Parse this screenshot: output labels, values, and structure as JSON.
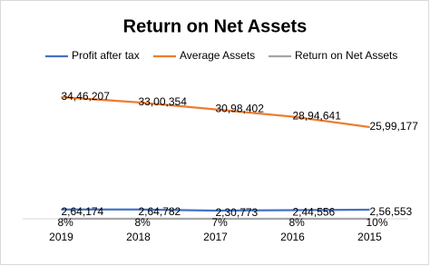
{
  "chart_data": {
    "type": "line",
    "title": "Return on Net Assets",
    "categories": [
      "2019",
      "2018",
      "2017",
      "2016",
      "2015"
    ],
    "series": [
      {
        "name": "Profit after tax",
        "color": "#4472c4",
        "values": [
          264174,
          264782,
          230773,
          244556,
          256553
        ],
        "value_labels": [
          "2,64,174",
          "2,64,782",
          "2,30,773",
          "2,44,556",
          "2,56,553"
        ]
      },
      {
        "name": "Average Assets",
        "color": "#ed7d31",
        "values": [
          3446207,
          3300354,
          3098402,
          2894641,
          2599177
        ],
        "value_labels": [
          "34,46,207",
          "33,00,354",
          "30,98,402",
          "28,94,641",
          "25,99,177"
        ]
      },
      {
        "name": "Return on Net Assets",
        "color": "#a5a5a5",
        "values": [
          8,
          8,
          7,
          8,
          10
        ],
        "value_labels": [
          "8%",
          "8%",
          "7%",
          "8%",
          "10%"
        ]
      }
    ],
    "ylim": [
      0,
      4000000
    ],
    "legend": "top"
  }
}
